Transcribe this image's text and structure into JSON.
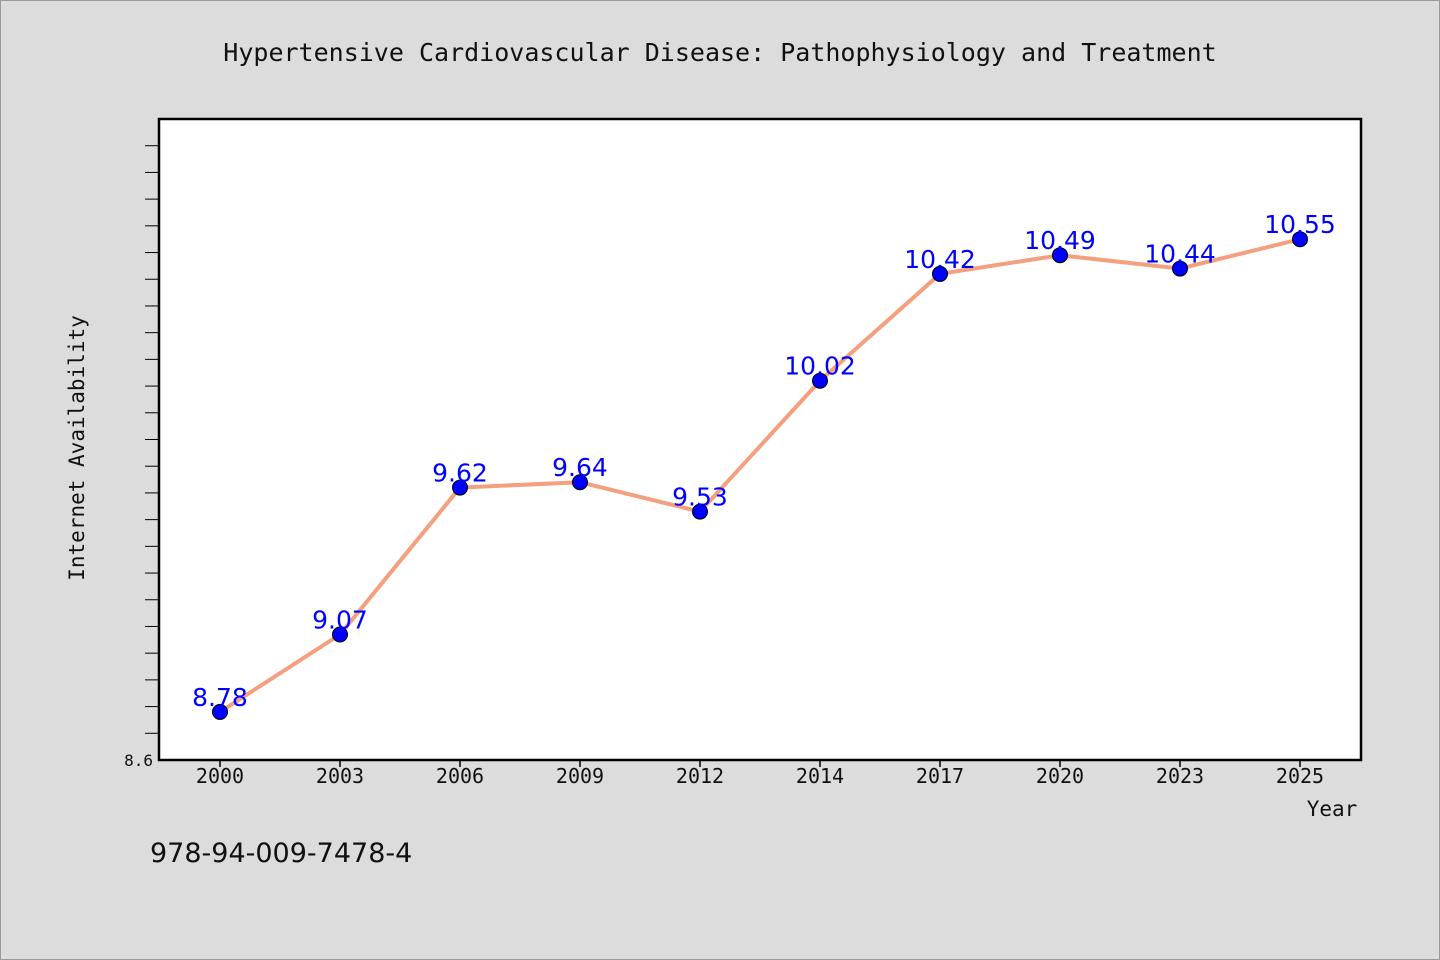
{
  "colors": {
    "background": "#dcdcdc",
    "plot_background": "#ffffff",
    "line": "#f4a07e",
    "marker": "#0000ff",
    "data_label": "#0000ff"
  },
  "footer": {
    "isbn": "978-94-009-7478-4"
  },
  "chart_data": {
    "type": "line",
    "title": "Hypertensive Cardiovascular Disease: Pathophysiology and Treatment",
    "xlabel": "Year",
    "ylabel": "Internet Availability",
    "categories": [
      "2000",
      "2003",
      "2006",
      "2009",
      "2012",
      "2014",
      "2017",
      "2020",
      "2023",
      "2025"
    ],
    "series": [
      {
        "values": [
          8.78,
          9.07,
          9.62,
          9.64,
          9.53,
          10.02,
          10.42,
          10.49,
          10.44,
          10.55
        ],
        "labels": [
          "8.78",
          "9.07",
          "9.62",
          "9.64",
          "9.53",
          "10.02",
          "10.42",
          "10.49",
          "10.44",
          "10.55"
        ]
      }
    ],
    "ylim": [
      8.6,
      11.0
    ],
    "y_tick_labels": [
      "8.6"
    ],
    "y_minor_tick_step": 0.1,
    "grid": false,
    "legend": "none"
  }
}
